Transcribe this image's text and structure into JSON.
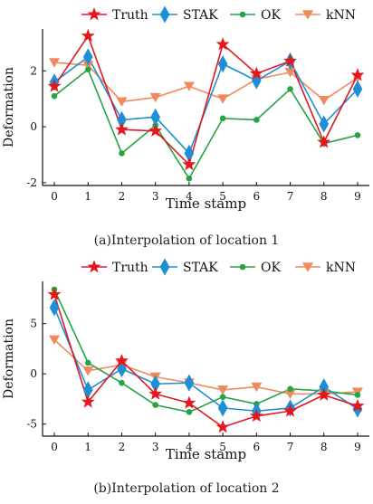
{
  "chart_data": [
    {
      "type": "line",
      "xlabel": "Time stamp",
      "ylabel": "Deformation",
      "caption": "(a)Interpolation of location 1",
      "x": [
        0,
        1,
        2,
        3,
        4,
        5,
        6,
        7,
        8,
        9
      ],
      "xlim": [
        -0.35,
        9.35
      ],
      "ylim": [
        -2.1,
        3.5
      ],
      "yticks": [
        -2,
        0,
        2
      ],
      "legend": "top",
      "grid": false,
      "series": [
        {
          "name": "Truth",
          "color": "#e3171d",
          "marker": "star",
          "values": [
            1.45,
            3.25,
            -0.1,
            -0.15,
            -1.35,
            2.95,
            1.9,
            2.35,
            -0.55,
            1.85
          ]
        },
        {
          "name": "STAK",
          "color": "#1f8fd3",
          "marker": "diamond",
          "values": [
            1.6,
            2.5,
            0.25,
            0.35,
            -0.95,
            2.25,
            1.65,
            2.35,
            0.1,
            1.35
          ]
        },
        {
          "name": "OK",
          "color": "#26a344",
          "marker": "circle",
          "values": [
            1.1,
            2.05,
            -0.95,
            0.05,
            -1.85,
            0.3,
            0.25,
            1.35,
            -0.6,
            -0.3
          ]
        },
        {
          "name": "kNN",
          "color": "#f08a5d",
          "marker": "triangle-down",
          "values": [
            2.3,
            2.2,
            0.9,
            1.05,
            1.45,
            1.0,
            1.7,
            1.95,
            0.95,
            1.75
          ]
        }
      ]
    },
    {
      "type": "line",
      "xlabel": "Time stamp",
      "ylabel": "Deformation",
      "caption": "(b)Interpolation of location 2",
      "x": [
        0,
        1,
        2,
        3,
        4,
        5,
        6,
        7,
        8,
        9
      ],
      "xlim": [
        -0.35,
        9.35
      ],
      "ylim": [
        -6.2,
        9.2
      ],
      "yticks": [
        -5,
        0,
        5
      ],
      "legend": "top",
      "grid": false,
      "series": [
        {
          "name": "Truth",
          "color": "#e3171d",
          "marker": "star",
          "values": [
            7.9,
            -2.8,
            1.3,
            -2.0,
            -2.9,
            -5.3,
            -4.2,
            -3.7,
            -2.1,
            -3.2
          ]
        },
        {
          "name": "STAK",
          "color": "#1f8fd3",
          "marker": "diamond",
          "values": [
            6.6,
            -1.6,
            0.5,
            -1.0,
            -0.9,
            -3.4,
            -3.7,
            -3.4,
            -1.3,
            -3.5
          ]
        },
        {
          "name": "OK",
          "color": "#26a344",
          "marker": "circle",
          "values": [
            8.4,
            1.1,
            -0.9,
            -3.1,
            -3.8,
            -2.3,
            -3.0,
            -1.5,
            -1.7,
            -2.1
          ]
        },
        {
          "name": "kNN",
          "color": "#f08a5d",
          "marker": "triangle-down",
          "values": [
            3.4,
            0.3,
            0.9,
            -0.3,
            -0.9,
            -1.6,
            -1.3,
            -2.0,
            -2.0,
            -1.8
          ]
        }
      ]
    }
  ]
}
